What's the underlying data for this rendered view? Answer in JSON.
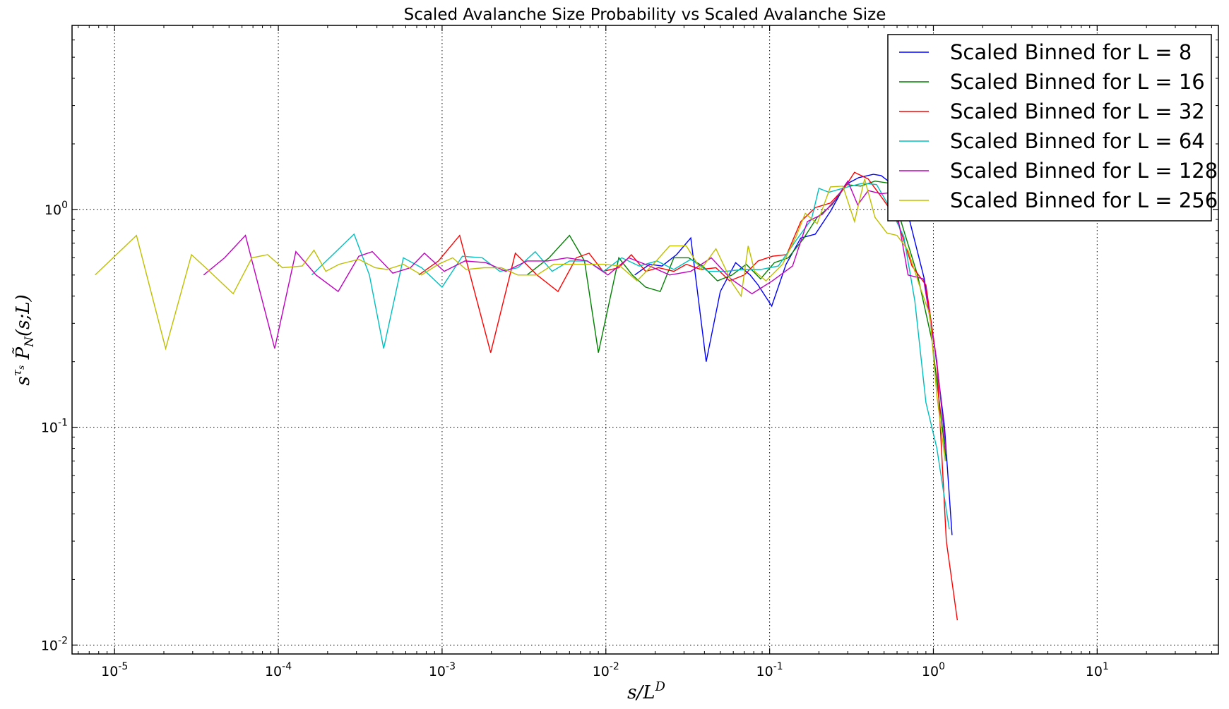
{
  "chart_data": {
    "type": "line",
    "title": "Scaled Avalanche Size Probability vs Scaled Avalanche Size",
    "xlabel": "s/L^D",
    "ylabel": "s^τs P̃_N(s;L)",
    "xscale": "log",
    "yscale": "log",
    "xlim": [
      5.5e-06,
      55
    ],
    "ylim": [
      0.0091,
      7.0
    ],
    "x_ticks": [
      {
        "value": 1e-05,
        "base": "10",
        "exp": "-5"
      },
      {
        "value": 0.0001,
        "base": "10",
        "exp": "-4"
      },
      {
        "value": 0.001,
        "base": "10",
        "exp": "-3"
      },
      {
        "value": 0.01,
        "base": "10",
        "exp": "-2"
      },
      {
        "value": 0.1,
        "base": "10",
        "exp": "-1"
      },
      {
        "value": 1,
        "base": "10",
        "exp": "0"
      },
      {
        "value": 10,
        "base": "10",
        "exp": "1"
      }
    ],
    "y_ticks": [
      {
        "value": 0.01,
        "base": "10",
        "exp": "-2"
      },
      {
        "value": 0.1,
        "base": "10",
        "exp": "-1"
      },
      {
        "value": 1,
        "base": "10",
        "exp": "0"
      }
    ],
    "grid": true,
    "legend_position": "top-right",
    "series": [
      {
        "name": "Scaled Binned for L = 8",
        "color": "#0000ff",
        "x": [
          0.015,
          0.0185,
          0.022,
          0.027,
          0.033,
          0.041,
          0.05,
          0.062,
          0.076,
          0.085,
          0.103,
          0.126,
          0.155,
          0.19,
          0.235,
          0.29,
          0.35,
          0.43,
          0.48,
          0.53,
          0.6,
          0.7,
          0.88,
          1.02,
          1.17,
          1.3
        ],
        "y": [
          0.5,
          0.56,
          0.55,
          0.62,
          0.74,
          0.2,
          0.42,
          0.57,
          0.5,
          0.45,
          0.36,
          0.56,
          0.74,
          0.77,
          0.98,
          1.3,
          1.4,
          1.45,
          1.43,
          1.35,
          1.2,
          0.95,
          0.48,
          0.23,
          0.1,
          0.032
        ]
      },
      {
        "name": "Scaled Binned for L = 16",
        "color": "#008000",
        "x": [
          0.0033,
          0.0045,
          0.006,
          0.0074,
          0.009,
          0.012,
          0.0145,
          0.0175,
          0.0215,
          0.026,
          0.032,
          0.039,
          0.048,
          0.059,
          0.072,
          0.088,
          0.107,
          0.13,
          0.16,
          0.195,
          0.24,
          0.295,
          0.36,
          0.44,
          0.54,
          0.66,
          0.8,
          0.98,
          1.2
        ],
        "y": [
          0.5,
          0.6,
          0.76,
          0.58,
          0.22,
          0.6,
          0.5,
          0.44,
          0.42,
          0.6,
          0.6,
          0.55,
          0.47,
          0.5,
          0.56,
          0.48,
          0.57,
          0.6,
          0.73,
          0.92,
          1.05,
          1.3,
          1.28,
          1.35,
          1.32,
          0.8,
          0.5,
          0.25,
          0.07
        ]
      },
      {
        "name": "Scaled Binned for L = 32",
        "color": "#ff0000",
        "x": [
          0.00072,
          0.00095,
          0.00128,
          0.00198,
          0.0028,
          0.0038,
          0.0051,
          0.0066,
          0.0079,
          0.0096,
          0.012,
          0.0143,
          0.0175,
          0.021,
          0.026,
          0.031,
          0.038,
          0.047,
          0.057,
          0.07,
          0.085,
          0.104,
          0.127,
          0.155,
          0.19,
          0.235,
          0.285,
          0.33,
          0.4,
          0.49,
          0.6,
          0.74,
          0.9,
          1.05,
          1.2,
          1.4
        ],
        "y": [
          0.5,
          0.58,
          0.76,
          0.22,
          0.63,
          0.5,
          0.42,
          0.6,
          0.63,
          0.52,
          0.54,
          0.62,
          0.52,
          0.54,
          0.52,
          0.56,
          0.53,
          0.54,
          0.47,
          0.5,
          0.58,
          0.61,
          0.62,
          0.88,
          1.02,
          1.07,
          1.25,
          1.48,
          1.38,
          1.12,
          0.9,
          0.55,
          0.45,
          0.2,
          0.03,
          0.013
        ]
      },
      {
        "name": "Scaled Binned for L = 64",
        "color": "#00bfbf",
        "x": [
          0.00016,
          0.00022,
          0.00029,
          0.00036,
          0.00044,
          0.00058,
          0.00075,
          0.001,
          0.00133,
          0.00176,
          0.00225,
          0.0029,
          0.0037,
          0.0047,
          0.006,
          0.0077,
          0.0097,
          0.0125,
          0.016,
          0.0205,
          0.026,
          0.033,
          0.042,
          0.054,
          0.069,
          0.088,
          0.113,
          0.145,
          0.18,
          0.2,
          0.23,
          0.3,
          0.37,
          0.45,
          0.55,
          0.66,
          0.77,
          0.9,
          1.05,
          1.25
        ],
        "y": [
          0.5,
          0.63,
          0.77,
          0.5,
          0.23,
          0.6,
          0.54,
          0.44,
          0.61,
          0.6,
          0.52,
          0.54,
          0.64,
          0.52,
          0.58,
          0.58,
          0.52,
          0.6,
          0.55,
          0.58,
          0.53,
          0.59,
          0.52,
          0.52,
          0.53,
          0.53,
          0.55,
          0.72,
          0.9,
          1.25,
          1.2,
          1.27,
          1.32,
          1.3,
          1.0,
          0.75,
          0.38,
          0.13,
          0.08,
          0.034
        ]
      },
      {
        "name": "Scaled Binned for L = 128",
        "color": "#bf00bf",
        "x": [
          3.5e-05,
          4.7e-05,
          6.3e-05,
          9.5e-05,
          0.000128,
          0.00017,
          0.000232,
          0.00031,
          0.000375,
          0.0005,
          0.00064,
          0.00078,
          0.00103,
          0.00138,
          0.00185,
          0.00245,
          0.0033,
          0.0044,
          0.0058,
          0.0077,
          0.0103,
          0.0138,
          0.0185,
          0.0245,
          0.033,
          0.044,
          0.058,
          0.078,
          0.104,
          0.138,
          0.17,
          0.21,
          0.25,
          0.3,
          0.345,
          0.4,
          0.48,
          0.57,
          0.7,
          0.87,
          1.05,
          1.2
        ],
        "y": [
          0.5,
          0.6,
          0.76,
          0.23,
          0.64,
          0.5,
          0.42,
          0.61,
          0.64,
          0.51,
          0.54,
          0.63,
          0.52,
          0.58,
          0.57,
          0.52,
          0.58,
          0.58,
          0.6,
          0.58,
          0.5,
          0.6,
          0.55,
          0.5,
          0.52,
          0.6,
          0.48,
          0.41,
          0.47,
          0.55,
          0.88,
          0.95,
          1.1,
          1.35,
          1.05,
          1.22,
          1.18,
          1.2,
          0.5,
          0.48,
          0.2,
          0.075
        ]
      },
      {
        "name": "Scaled Binned for L = 256",
        "color": "#bfbf00",
        "x": [
          7.6e-06,
          1.36e-05,
          2.05e-05,
          2.95e-05,
          3.7e-05,
          5.3e-05,
          6.9e-05,
          8.6e-05,
          0.000106,
          0.00014,
          0.000165,
          0.000195,
          0.000235,
          0.00031,
          0.00039,
          0.00046,
          0.00058,
          0.00075,
          0.00095,
          0.00116,
          0.0014,
          0.0018,
          0.0023,
          0.0029,
          0.0038,
          0.0048,
          0.0061,
          0.0078,
          0.0097,
          0.0122,
          0.0155,
          0.0195,
          0.0245,
          0.031,
          0.038,
          0.047,
          0.059,
          0.067,
          0.074,
          0.081,
          0.095,
          0.12,
          0.145,
          0.165,
          0.195,
          0.235,
          0.28,
          0.33,
          0.38,
          0.44,
          0.52,
          0.6,
          0.7,
          0.82,
          0.95,
          1.05,
          1.18
        ],
        "y": [
          0.5,
          0.76,
          0.23,
          0.62,
          0.53,
          0.41,
          0.6,
          0.62,
          0.54,
          0.55,
          0.65,
          0.52,
          0.56,
          0.59,
          0.54,
          0.53,
          0.56,
          0.5,
          0.56,
          0.6,
          0.53,
          0.54,
          0.54,
          0.5,
          0.5,
          0.56,
          0.56,
          0.56,
          0.56,
          0.55,
          0.47,
          0.56,
          0.68,
          0.68,
          0.53,
          0.66,
          0.46,
          0.4,
          0.68,
          0.52,
          0.47,
          0.56,
          0.75,
          0.96,
          0.86,
          1.27,
          1.28,
          0.88,
          1.38,
          0.92,
          0.78,
          0.76,
          0.65,
          0.45,
          0.33,
          0.14,
          0.07
        ]
      }
    ]
  }
}
